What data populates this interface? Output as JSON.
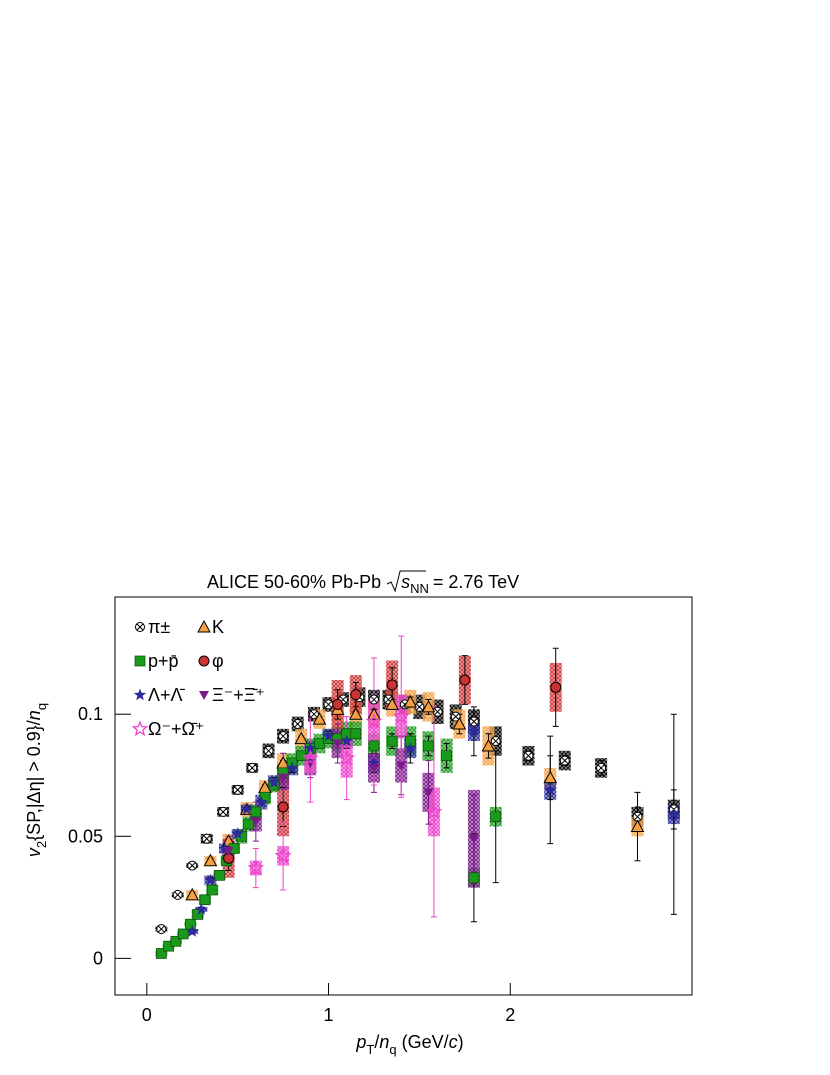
{
  "chart_data": {
    "type": "scatter",
    "title": {
      "text": "ALICE 50-60% Pb-Pb",
      "radicand": "s",
      "radicand_sub": "NN",
      "energy": "= 2.76 TeV"
    },
    "x_label": [
      "p",
      "T",
      "/",
      "n",
      "q",
      " (GeV/",
      "c",
      ")"
    ],
    "y_label": [
      "v",
      "2",
      "{SP,|Δη| > 0.9}/",
      "n",
      "q"
    ],
    "xlim": [
      -0.175,
      3.0
    ],
    "ylim": [
      -0.015,
      0.148
    ],
    "xticks": [
      0,
      1,
      2
    ],
    "yticks": [
      0,
      0.05,
      0.1
    ],
    "legend": "upper left",
    "series": [
      {
        "name": "π±",
        "color": "#000000",
        "marker": "circle-x",
        "x": [
          0.08,
          0.17,
          0.25,
          0.33,
          0.42,
          0.5,
          0.58,
          0.67,
          0.75,
          0.83,
          0.92,
          1.0,
          1.08,
          1.17,
          1.25,
          1.33,
          1.42,
          1.5,
          1.6,
          1.7,
          1.8,
          1.92,
          2.1,
          2.3,
          2.5,
          2.7,
          2.9
        ],
        "values": [
          0.012,
          0.026,
          0.038,
          0.049,
          0.06,
          0.069,
          0.078,
          0.085,
          0.091,
          0.096,
          0.1,
          0.104,
          0.106,
          0.107,
          0.106,
          0.106,
          0.104,
          0.103,
          0.101,
          0.099,
          0.097,
          0.089,
          0.083,
          0.081,
          0.078,
          0.058,
          0.061
        ],
        "errors": [
          0.0005,
          0.0005,
          0.0005,
          0.0005,
          0.0005,
          0.0005,
          0.0005,
          0.0005,
          0.0005,
          0.0005,
          0.0005,
          0.0005,
          0.0005,
          0.0005,
          0.0005,
          0.0005,
          0.001,
          0.001,
          0.001,
          0.001,
          0.001,
          0.001,
          0.002,
          0.002,
          0.003,
          0.004,
          0.008
        ],
        "syst": [
          0.001,
          0.001,
          0.001,
          0.002,
          0.002,
          0.002,
          0.002,
          0.003,
          0.003,
          0.003,
          0.003,
          0.003,
          0.003,
          0.004,
          0.004,
          0.004,
          0.004,
          0.005,
          0.005,
          0.005,
          0.005,
          0.006,
          0.004,
          0.004,
          0.004,
          0.004,
          0.004
        ]
      },
      {
        "name": "K",
        "color": "#f5a042",
        "marker": "triangle",
        "x": [
          0.25,
          0.35,
          0.45,
          0.55,
          0.65,
          0.75,
          0.85,
          0.95,
          1.05,
          1.15,
          1.25,
          1.35,
          1.45,
          1.55,
          1.72,
          1.88,
          2.22,
          2.7
        ],
        "values": [
          0.026,
          0.04,
          0.048,
          0.061,
          0.07,
          0.08,
          0.09,
          0.098,
          0.102,
          0.1,
          0.1,
          0.104,
          0.105,
          0.103,
          0.096,
          0.087,
          0.074,
          0.054
        ],
        "errors": [
          0.001,
          0.001,
          0.001,
          0.001,
          0.001,
          0.001,
          0.001,
          0.001,
          0.001,
          0.001,
          0.002,
          0.002,
          0.002,
          0.003,
          0.004,
          0.005,
          0.009,
          0.014
        ],
        "syst": [
          0.002,
          0.002,
          0.003,
          0.003,
          0.003,
          0.004,
          0.004,
          0.004,
          0.005,
          0.005,
          0.005,
          0.005,
          0.005,
          0.006,
          0.006,
          0.008,
          0.004,
          0.004
        ]
      },
      {
        "name": "p+p̄",
        "color": "#1a9a1a",
        "marker": "square",
        "x": [
          0.08,
          0.12,
          0.16,
          0.2,
          0.24,
          0.28,
          0.32,
          0.36,
          0.4,
          0.44,
          0.48,
          0.52,
          0.56,
          0.6,
          0.65,
          0.7,
          0.75,
          0.8,
          0.85,
          0.9,
          0.95,
          1.0,
          1.05,
          1.1,
          1.15,
          1.25,
          1.35,
          1.45,
          1.55,
          1.65,
          1.8,
          1.92
        ],
        "values": [
          0.002,
          0.005,
          0.007,
          0.01,
          0.014,
          0.018,
          0.024,
          0.028,
          0.034,
          0.04,
          0.045,
          0.05,
          0.055,
          0.06,
          0.066,
          0.071,
          0.076,
          0.08,
          0.083,
          0.086,
          0.088,
          0.09,
          0.09,
          0.092,
          0.092,
          0.087,
          0.089,
          0.089,
          0.087,
          0.083,
          0.033,
          0.058
        ],
        "errors": [
          0.001,
          0.001,
          0.001,
          0.001,
          0.001,
          0.001,
          0.001,
          0.001,
          0.001,
          0.001,
          0.001,
          0.001,
          0.001,
          0.001,
          0.001,
          0.001,
          0.001,
          0.001,
          0.001,
          0.001,
          0.001,
          0.001,
          0.001,
          0.002,
          0.002,
          0.002,
          0.003,
          0.003,
          0.004,
          0.005,
          0.018,
          0.027
        ],
        "syst": [
          0.001,
          0.001,
          0.001,
          0.001,
          0.001,
          0.002,
          0.002,
          0.002,
          0.002,
          0.002,
          0.002,
          0.003,
          0.003,
          0.003,
          0.003,
          0.003,
          0.004,
          0.004,
          0.004,
          0.004,
          0.004,
          0.004,
          0.005,
          0.005,
          0.005,
          0.005,
          0.006,
          0.006,
          0.006,
          0.007,
          0.004,
          0.004
        ]
      },
      {
        "name": "φ",
        "color": "#cc3333",
        "marker": "circle",
        "x": [
          0.45,
          0.75,
          1.05,
          1.15,
          1.35,
          1.75,
          2.25
        ],
        "values": [
          0.041,
          0.062,
          0.104,
          0.108,
          0.112,
          0.114,
          0.111
        ],
        "errors": [
          0.005,
          0.008,
          0.006,
          0.005,
          0.007,
          0.01,
          0.016
        ],
        "syst": [
          0.008,
          0.012,
          0.01,
          0.008,
          0.01,
          0.01,
          0.01
        ]
      },
      {
        "name": "Λ+Λ̄",
        "color": "#2a2a9a",
        "marker": "star",
        "x": [
          0.25,
          0.3,
          0.35,
          0.43,
          0.5,
          0.55,
          0.63,
          0.7,
          0.8,
          0.9,
          1.0,
          1.1,
          1.25,
          1.45,
          1.8,
          2.22,
          2.9
        ],
        "values": [
          0.011,
          0.02,
          0.032,
          0.045,
          0.051,
          0.061,
          0.064,
          0.072,
          0.078,
          0.086,
          0.091,
          0.089,
          0.08,
          0.086,
          0.093,
          0.069,
          0.059
        ],
        "errors": [
          0.001,
          0.001,
          0.001,
          0.001,
          0.001,
          0.001,
          0.001,
          0.002,
          0.002,
          0.002,
          0.002,
          0.003,
          0.004,
          0.006,
          0.01,
          0.022,
          0.041
        ],
        "syst": [
          0.001,
          0.001,
          0.002,
          0.002,
          0.002,
          0.002,
          0.003,
          0.003,
          0.003,
          0.003,
          0.003,
          0.003,
          0.004,
          0.004,
          0.004,
          0.004,
          0.004
        ]
      },
      {
        "name": "Ξ⁻+Ξ̄⁺",
        "color": "#7a1a8a",
        "marker": "triangle-down",
        "x": [
          0.45,
          0.6,
          0.75,
          0.9,
          1.05,
          1.25,
          1.4,
          1.55,
          1.8
        ],
        "values": [
          0.044,
          0.056,
          0.074,
          0.08,
          0.088,
          0.078,
          0.079,
          0.068,
          0.049
        ],
        "errors": [
          0.006,
          0.008,
          0.01,
          0.006,
          0.008,
          0.01,
          0.012,
          0.013,
          0.018
        ],
        "syst": [
          0.004,
          0.004,
          0.005,
          0.005,
          0.006,
          0.006,
          0.007,
          0.008,
          0.02
        ]
      },
      {
        "name": "Ω⁻+Ω̄⁺",
        "color": "#ee44cc",
        "marker": "star-open",
        "x": [
          0.6,
          0.75,
          0.9,
          1.1,
          1.25,
          1.4,
          1.58
        ],
        "values": [
          0.037,
          0.042,
          0.082,
          0.082,
          0.097,
          0.099,
          0.06
        ],
        "errors": [
          0.008,
          0.014,
          0.018,
          0.017,
          0.026,
          0.033,
          0.043
        ],
        "syst": [
          0.003,
          0.004,
          0.006,
          0.008,
          0.009,
          0.009,
          0.01
        ]
      }
    ]
  }
}
